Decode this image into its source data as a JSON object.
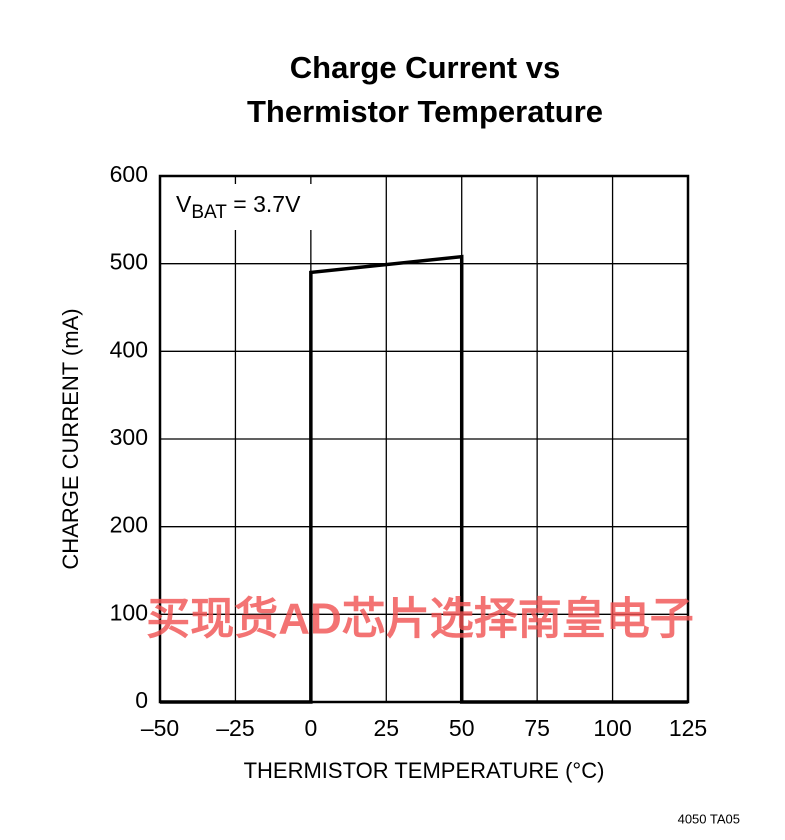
{
  "chart_data": {
    "type": "line",
    "title": [
      "Charge Current vs",
      "Thermistor Temperature"
    ],
    "x_label": "THERMISTOR TEMPERATURE (°C)",
    "y_label": "CHARGE CURRENT (mA)",
    "annotation": {
      "main": "V",
      "sub": "BAT",
      "rest": " = 3.7V"
    },
    "x": [
      -50,
      0,
      0,
      50,
      50,
      125
    ],
    "values": [
      0,
      0,
      490,
      508,
      0,
      0
    ],
    "color": "#000000",
    "xlim": [
      -50,
      125
    ],
    "xticks": [
      {
        "value": -50,
        "label": "–50"
      },
      {
        "value": -25,
        "label": "–25"
      },
      0,
      25,
      50,
      75,
      100,
      125
    ],
    "ylim": [
      0,
      600
    ],
    "yticks": [
      0,
      100,
      200,
      300,
      400,
      500,
      600
    ],
    "grid": true,
    "watermark": "买现货AD芯片选择南皇电子",
    "footnote": "4050 TA05"
  }
}
